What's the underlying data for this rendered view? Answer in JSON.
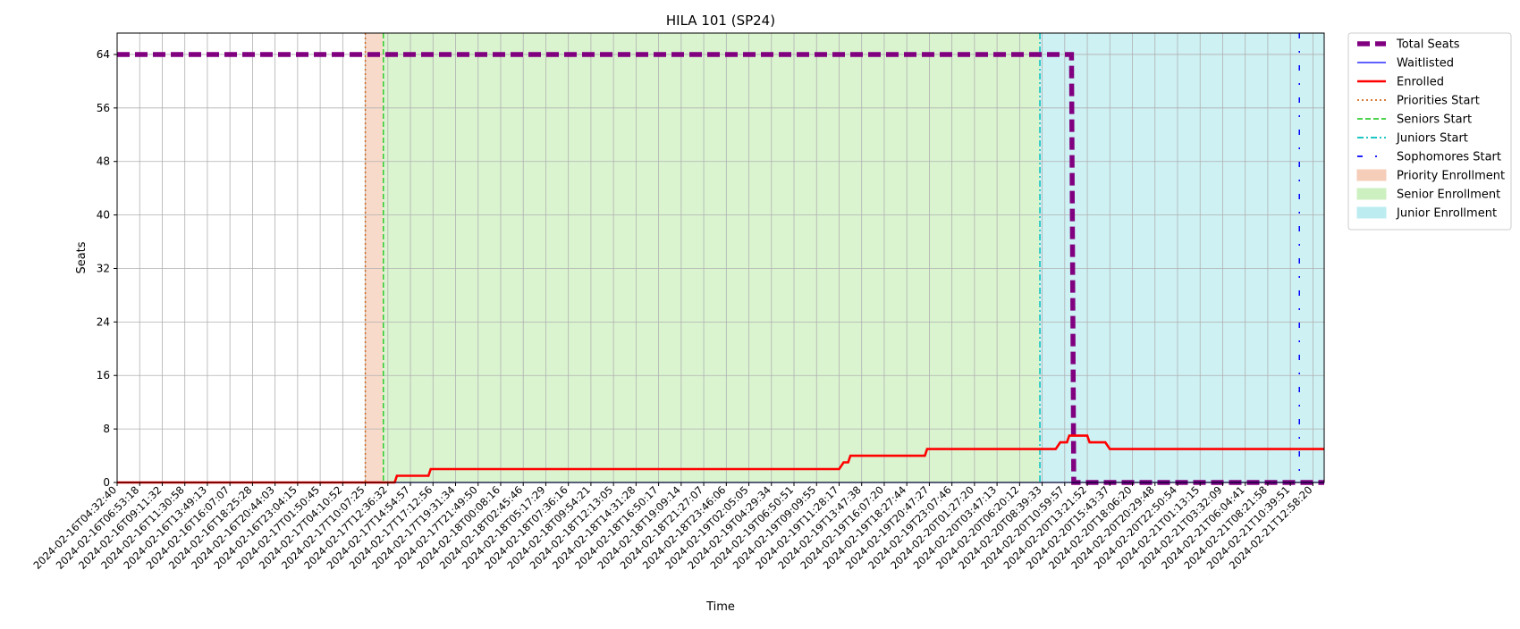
{
  "chart_data": {
    "type": "line",
    "title": "HILA 101 (SP24)",
    "xlabel": "Time",
    "ylabel": "Seats",
    "ylim": [
      0,
      67.2
    ],
    "yticks": [
      0,
      8,
      16,
      24,
      32,
      40,
      48,
      56,
      64
    ],
    "x": [
      "2024-02-16T04:32:40",
      "2024-02-16T06:53:18",
      "2024-02-16T09:11:32",
      "2024-02-16T11:30:58",
      "2024-02-16T13:49:13",
      "2024-02-16T16:07:07",
      "2024-02-16T18:25:28",
      "2024-02-16T20:44:03",
      "2024-02-16T23:04:15",
      "2024-02-17T01:50:45",
      "2024-02-17T04:10:52",
      "2024-02-17T10:07:25",
      "2024-02-17T12:36:32",
      "2024-02-17T14:54:57",
      "2024-02-17T17:12:56",
      "2024-02-17T19:31:34",
      "2024-02-17T21:49:50",
      "2024-02-18T00:08:16",
      "2024-02-18T02:45:46",
      "2024-02-18T05:17:29",
      "2024-02-18T07:36:16",
      "2024-02-18T09:54:21",
      "2024-02-18T12:13:05",
      "2024-02-18T14:31:28",
      "2024-02-18T16:50:17",
      "2024-02-18T19:09:14",
      "2024-02-18T21:27:07",
      "2024-02-18T23:46:06",
      "2024-02-19T02:05:05",
      "2024-02-19T04:29:34",
      "2024-02-19T06:50:51",
      "2024-02-19T09:09:55",
      "2024-02-19T11:28:17",
      "2024-02-19T13:47:38",
      "2024-02-19T16:07:20",
      "2024-02-19T18:27:44",
      "2024-02-19T20:47:27",
      "2024-02-19T23:07:46",
      "2024-02-20T01:27:20",
      "2024-02-20T03:47:13",
      "2024-02-20T06:20:12",
      "2024-02-20T08:39:33",
      "2024-02-20T10:59:57",
      "2024-02-20T13:21:52",
      "2024-02-20T15:43:37",
      "2024-02-20T18:06:20",
      "2024-02-20T20:29:48",
      "2024-02-20T22:50:54",
      "2024-02-21T01:13:15",
      "2024-02-21T03:32:09",
      "2024-02-21T06:04:41",
      "2024-02-21T08:21:58",
      "2024-02-21T10:39:51",
      "2024-02-21T12:58:20"
    ],
    "series": [
      {
        "name": "Total Seats",
        "color": "#800080",
        "style": "dashed-thick",
        "points": [
          [
            0,
            64
          ],
          [
            42.3,
            64
          ],
          [
            42.4,
            0
          ],
          [
            53.5,
            0
          ]
        ]
      },
      {
        "name": "Waitlisted",
        "color": "#0000ff",
        "style": "solid-thin",
        "points": [
          [
            0,
            0
          ],
          [
            53.5,
            0
          ]
        ]
      },
      {
        "name": "Enrolled",
        "color": "#ff0000",
        "style": "solid",
        "points": [
          [
            0,
            0
          ],
          [
            12.3,
            0
          ],
          [
            12.4,
            1
          ],
          [
            13.8,
            1
          ],
          [
            13.9,
            2
          ],
          [
            32.0,
            2
          ],
          [
            32.2,
            3
          ],
          [
            32.4,
            3
          ],
          [
            32.5,
            4
          ],
          [
            35.8,
            4
          ],
          [
            35.9,
            5
          ],
          [
            41.6,
            5
          ],
          [
            41.8,
            6
          ],
          [
            42.1,
            6
          ],
          [
            42.2,
            7
          ],
          [
            43.0,
            7
          ],
          [
            43.1,
            6
          ],
          [
            43.8,
            6
          ],
          [
            44.0,
            5
          ],
          [
            53.5,
            5
          ]
        ]
      }
    ],
    "vertical_lines": [
      {
        "name": "Priorities Start",
        "x": 11.0,
        "color": "#d2691e",
        "style": "dotted"
      },
      {
        "name": "Seniors Start",
        "x": 11.8,
        "color": "#32cd32",
        "style": "dashed"
      },
      {
        "name": "Juniors Start",
        "x": 40.9,
        "color": "#00bfbf",
        "style": "dashdot"
      },
      {
        "name": "Sophomores Start",
        "x": 52.4,
        "color": "#0000ff",
        "style": "loose-dashdot"
      }
    ],
    "spans": [
      {
        "name": "Priority Enrollment",
        "x0": 11.0,
        "x1": 11.8,
        "color": "#f5cdb8"
      },
      {
        "name": "Senior Enrollment",
        "x0": 11.8,
        "x1": 40.9,
        "color": "#cdf0c0"
      },
      {
        "name": "Junior Enrollment",
        "x0": 40.9,
        "x1": 53.5,
        "color": "#bdecf0"
      }
    ],
    "xlim": [
      0,
      53.5
    ],
    "grid": true,
    "legend_position": "outside-top-right"
  }
}
